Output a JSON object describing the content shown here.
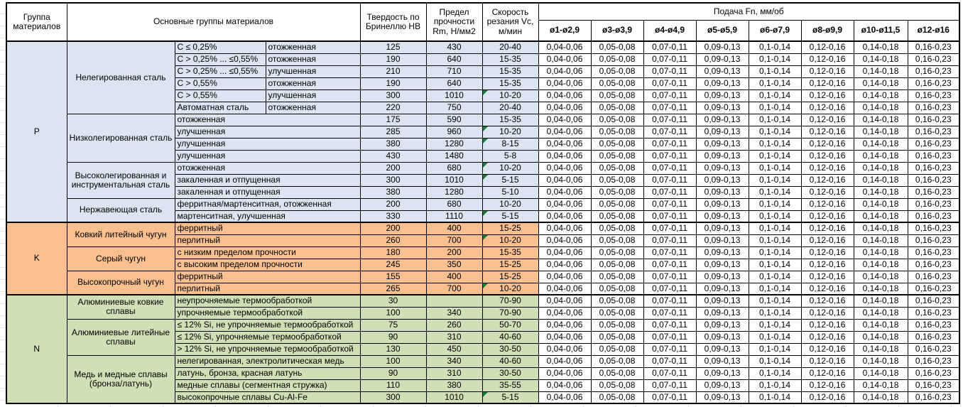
{
  "colors": {
    "steel_blue": "#dbe5f1",
    "cast_iron_orange": "#fabf8f",
    "nonferrous_green": "#cfdfb6",
    "header_bg": "#ffffff",
    "border": "#000000",
    "comment_triangle": "#1e7a3c",
    "sheet_gridline": "#e0e4e9"
  },
  "table": {
    "headers": {
      "group": "Группа материалов",
      "main_groups": "Основные группы материалов",
      "hardness": "Твердость по Бринеллю HB",
      "strength": "Предел прочности Rm, Н/мм2",
      "speed": "Скорость резания Vc, м/мин",
      "feed": "Подача Fn, мм/об",
      "diameters": [
        "ø1-ø2,9",
        "ø3-ø3,9",
        "ø4-ø4,9",
        "ø5-ø5,9",
        "ø6-ø7,9",
        "ø8-ø9,9",
        "ø10-ø11,5",
        "ø12-ø16"
      ]
    },
    "feed_values": [
      "0,04-0,06",
      "0,05-0,08",
      "0,07-0,11",
      "0,09-0,13",
      "0,1-0,14",
      "0,12-0,16",
      "0,14-0,18",
      "0,16-0,23"
    ],
    "sections": [
      {
        "group": "P",
        "color": "#dbe5f1",
        "subgroups": [
          {
            "name": "Нелегированная сталь",
            "rows": [
              {
                "details": [
                  "C ≤ 0,25%",
                  "отожженная"
                ],
                "hb": "125",
                "rm": "430",
                "vc": "20-40",
                "note": false
              },
              {
                "details": [
                  "C > 0,25% ... ≤0,55%",
                  "отожженная"
                ],
                "hb": "190",
                "rm": "640",
                "vc": "15-35",
                "note": false
              },
              {
                "details": [
                  "C > 0,25% ... ≤0,55%",
                  "улучшенная"
                ],
                "hb": "210",
                "rm": "710",
                "vc": "15-35",
                "note": false
              },
              {
                "details": [
                  "C > 0,55%",
                  "отожженная"
                ],
                "hb": "190",
                "rm": "640",
                "vc": "15-35",
                "note": false
              },
              {
                "details": [
                  "C > 0,55%",
                  "улучшенная"
                ],
                "hb": "300",
                "rm": "1010",
                "vc": "10-20",
                "note": true
              },
              {
                "details": [
                  "Автоматная сталь",
                  "отожженная"
                ],
                "hb": "220",
                "rm": "750",
                "vc": "20-40",
                "note": false
              }
            ]
          },
          {
            "name": "Низколегированная сталь",
            "rows": [
              {
                "details": [
                  "отожженная"
                ],
                "hb": "175",
                "rm": "590",
                "vc": "15-35",
                "note": false
              },
              {
                "details": [
                  "улучшенная"
                ],
                "hb": "285",
                "rm": "960",
                "vc": "10-20",
                "note": true
              },
              {
                "details": [
                  "улучшенная"
                ],
                "hb": "380",
                "rm": "1280",
                "vc": "8-15",
                "note": true
              },
              {
                "details": [
                  "улучшенная"
                ],
                "hb": "430",
                "rm": "1480",
                "vc": "5-8",
                "note": false
              }
            ]
          },
          {
            "name": "Высоколегированная и инструментальная сталь",
            "rows": [
              {
                "details": [
                  "отожженная"
                ],
                "hb": "200",
                "rm": "680",
                "vc": "10-20",
                "note": true
              },
              {
                "details": [
                  "закаленная и отпущенная"
                ],
                "hb": "300",
                "rm": "1010",
                "vc": "5-15",
                "note": true
              },
              {
                "details": [
                  "закаленная и отпущенная"
                ],
                "hb": "380",
                "rm": "1280",
                "vc": "5-10",
                "note": false
              }
            ]
          },
          {
            "name": "Нержавеющая сталь",
            "rows": [
              {
                "details": [
                  "ферритная/мартенситная, отожженная"
                ],
                "hb": "200",
                "rm": "680",
                "vc": "10-20",
                "note": false
              },
              {
                "details": [
                  "мартенситная, улучшенная"
                ],
                "hb": "330",
                "rm": "1110",
                "vc": "5-15",
                "note": true
              }
            ]
          }
        ]
      },
      {
        "group": "K",
        "color": "#fabf8f",
        "subgroups": [
          {
            "name": "Ковкий литейный чугун",
            "rows": [
              {
                "details": [
                  "ферритный"
                ],
                "hb": "200",
                "rm": "400",
                "vc": "15-25",
                "note": false
              },
              {
                "details": [
                  "перлитный"
                ],
                "hb": "260",
                "rm": "700",
                "vc": "10-20",
                "note": true
              }
            ]
          },
          {
            "name": "Серый чугун",
            "rows": [
              {
                "details": [
                  "с низким пределом прочности"
                ],
                "hb": "180",
                "rm": "200",
                "vc": "15-35",
                "note": false
              },
              {
                "details": [
                  "с высоким пределом прочности"
                ],
                "hb": "245",
                "rm": "350",
                "vc": "15-25",
                "note": false
              }
            ]
          },
          {
            "name": "Высокопрочный чугун",
            "rows": [
              {
                "details": [
                  "ферритный"
                ],
                "hb": "155",
                "rm": "400",
                "vc": "15-25",
                "note": false
              },
              {
                "details": [
                  "перлитный"
                ],
                "hb": "265",
                "rm": "700",
                "vc": "10-20",
                "note": true
              }
            ]
          }
        ]
      },
      {
        "group": "N",
        "color": "#cfdfb6",
        "subgroups": [
          {
            "name": "Алюминиевые ковкие сплавы",
            "rows": [
              {
                "details": [
                  "неупрочняемые термообработкой"
                ],
                "hb": "30",
                "rm": "",
                "vc": "70-90",
                "note": false
              },
              {
                "details": [
                  "упрочняемые термообработкой"
                ],
                "hb": "100",
                "rm": "340",
                "vc": "70-90",
                "note": false
              }
            ]
          },
          {
            "name": "Алюминиевые литейные сплавы",
            "rows": [
              {
                "details": [
                  "≤ 12% Si, не упрочняемые термообработкой"
                ],
                "hb": "75",
                "rm": "260",
                "vc": "50-70",
                "note": false
              },
              {
                "details": [
                  "≤ 12% Si, упрочняемые термообработкой"
                ],
                "hb": "90",
                "rm": "310",
                "vc": "40-60",
                "note": false
              },
              {
                "details": [
                  "> 12% Si, не упрочняемые термообработкой"
                ],
                "hb": "130",
                "rm": "450",
                "vc": "30-50",
                "note": false
              }
            ]
          },
          {
            "name": "Медь и медные сплавы (бронза/латунь)",
            "rows": [
              {
                "details": [
                  "нелегированная, электролитическая медь"
                ],
                "hb": "100",
                "rm": "340",
                "vc": "40-60",
                "note": false
              },
              {
                "details": [
                  "латунь, бронза, красная латунь"
                ],
                "hb": "90",
                "rm": "310",
                "vc": "30-50",
                "note": false
              },
              {
                "details": [
                  "медные сплавы (сегментная стружка)"
                ],
                "hb": "110",
                "rm": "380",
                "vc": "35-55",
                "note": false
              },
              {
                "details": [
                  "высокопрочные сплавы Cu-Al-Fe"
                ],
                "hb": "300",
                "rm": "1010",
                "vc": "5-15",
                "note": true
              }
            ]
          }
        ]
      }
    ]
  }
}
